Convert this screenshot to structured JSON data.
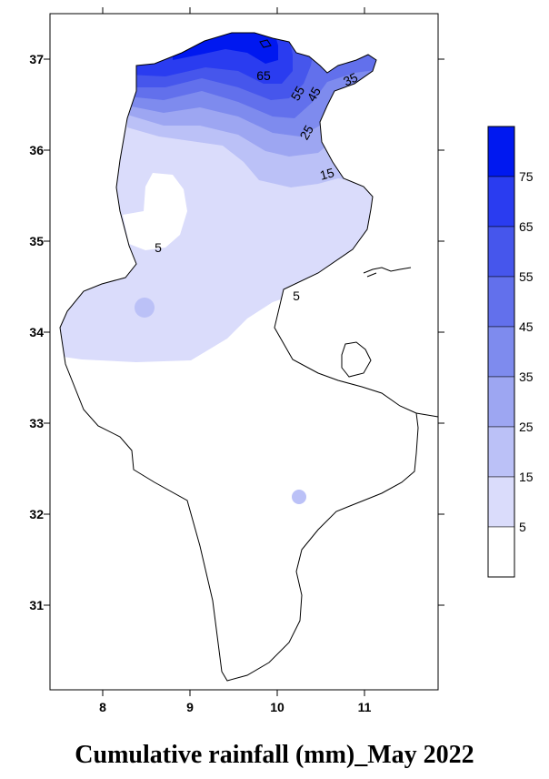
{
  "title": "Cumulative rainfall (mm)_May 2022",
  "x_ticks": [
    "8",
    "9",
    "10",
    "11"
  ],
  "y_ticks": [
    "37",
    "36",
    "35",
    "34",
    "33",
    "32",
    "31"
  ],
  "contour_labels": [
    "65",
    "55",
    "45",
    "35",
    "25",
    "15",
    "5",
    "5",
    "5"
  ],
  "legend": {
    "labels": [
      "75",
      "65",
      "55",
      "45",
      "35",
      "25",
      "15",
      "5"
    ],
    "colors": [
      "#0018f0",
      "#2a3cf0",
      "#4656ec",
      "#6270ec",
      "#7e8bee",
      "#9da6f2",
      "#bbc1f7",
      "#dadcfb",
      "#ffffff"
    ]
  },
  "colors": {
    "c5": "#dadcfb",
    "c15": "#bbc1f7",
    "c25": "#9da6f2",
    "c35": "#7e8bee",
    "c45": "#6270ec",
    "c55": "#4656ec",
    "c65": "#2a3cf0",
    "c75": "#0018f0"
  }
}
